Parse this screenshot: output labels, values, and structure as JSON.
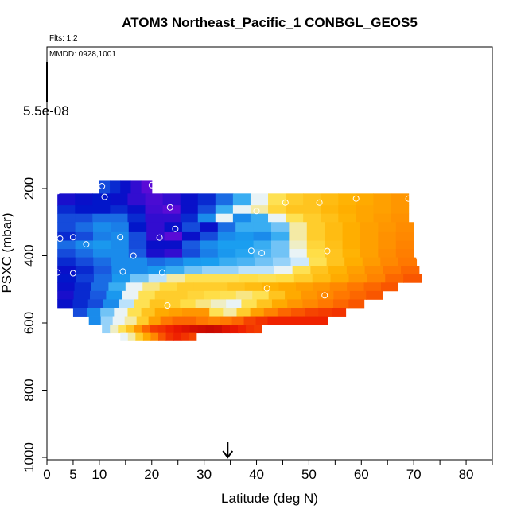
{
  "chart_data": {
    "type": "heatmap",
    "title": "ATOM3 Northeast_Pacific_1 CONBGL_GEOS5",
    "annotations": {
      "flights": "Flts: 1,2",
      "dates": "MMDD: 0928,1001"
    },
    "scale_label": "5.5e-08",
    "xlabel": "Latitude (deg N)",
    "ylabel": "PSXC (mbar)",
    "xlim": [
      0,
      85
    ],
    "ylim": [
      1000,
      0
    ],
    "x_ticks": [
      0,
      5,
      10,
      20,
      30,
      40,
      50,
      60,
      70,
      80
    ],
    "x_minor_ticks": [
      15,
      25,
      35,
      45,
      55,
      65,
      75,
      85
    ],
    "y_ticks": [
      200,
      400,
      600,
      800,
      1000
    ],
    "marker_latitude": 34.5,
    "color_scale": [
      "#5a0bd6",
      "#0010c8",
      "#1a5ae0",
      "#1aa0f0",
      "#e8f4ff",
      "#ffe04a",
      "#ffb000",
      "#ff7a00",
      "#ee1a00",
      "#b40000"
    ],
    "rows": [
      {
        "p_top": 175,
        "p_bot": 215,
        "lat_min": 10,
        "lat_max": 20,
        "values": [
          0.2,
          0.15,
          0.1,
          0.05,
          0.0
        ]
      },
      {
        "p_top": 215,
        "p_bot": 250,
        "lat_min": 2,
        "lat_max": 69,
        "values": [
          0.08,
          0.1,
          0.12,
          0.1,
          0.05,
          0.02,
          0.05,
          0.1,
          0.15,
          0.25,
          0.35,
          0.45,
          0.55,
          0.6,
          0.62,
          0.64,
          0.66,
          0.68,
          0.7,
          0.72
        ]
      },
      {
        "p_top": 250,
        "p_bot": 275,
        "lat_min": 2,
        "lat_max": 69,
        "values": [
          0.15,
          0.12,
          0.12,
          0.15,
          0.1,
          0.03,
          0.0,
          0.1,
          0.2,
          0.35,
          0.45,
          0.5,
          0.58,
          0.62,
          0.62,
          0.65,
          0.67,
          0.69,
          0.7,
          0.72
        ]
      },
      {
        "p_top": 275,
        "p_bot": 300,
        "lat_min": 2,
        "lat_max": 69,
        "values": [
          0.2,
          0.2,
          0.25,
          0.25,
          0.15,
          0.05,
          0.05,
          0.15,
          0.3,
          0.45,
          0.3,
          0.35,
          0.45,
          0.55,
          0.6,
          0.63,
          0.66,
          0.69,
          0.71,
          0.73
        ]
      },
      {
        "p_top": 300,
        "p_bot": 330,
        "lat_min": 2,
        "lat_max": 70,
        "values": [
          0.2,
          0.25,
          0.3,
          0.28,
          0.12,
          0.05,
          0.1,
          0.2,
          0.1,
          0.25,
          0.35,
          0.35,
          0.38,
          0.5,
          0.6,
          0.64,
          0.67,
          0.7,
          0.72,
          0.74
        ]
      },
      {
        "p_top": 330,
        "p_bot": 355,
        "lat_min": 2,
        "lat_max": 70,
        "values": [
          0.15,
          0.2,
          0.28,
          0.3,
          0.2,
          0.05,
          0.0,
          0.1,
          0.2,
          0.3,
          0.32,
          0.3,
          0.35,
          0.5,
          0.6,
          0.64,
          0.67,
          0.7,
          0.73,
          0.75
        ]
      },
      {
        "p_top": 355,
        "p_bot": 380,
        "lat_min": 2,
        "lat_max": 70,
        "values": [
          0.25,
          0.3,
          0.32,
          0.3,
          0.2,
          0.1,
          0.1,
          0.22,
          0.3,
          0.33,
          0.33,
          0.35,
          0.38,
          0.48,
          0.58,
          0.63,
          0.67,
          0.7,
          0.73,
          0.76
        ]
      },
      {
        "p_top": 380,
        "p_bot": 405,
        "lat_min": 2,
        "lat_max": 70,
        "values": [
          0.2,
          0.25,
          0.3,
          0.3,
          0.22,
          0.08,
          0.05,
          0.2,
          0.28,
          0.32,
          0.34,
          0.36,
          0.38,
          0.45,
          0.56,
          0.62,
          0.66,
          0.7,
          0.74,
          0.77
        ]
      },
      {
        "p_top": 405,
        "p_bot": 430,
        "lat_min": 2,
        "lat_max": 70.5,
        "values": [
          0.15,
          0.2,
          0.25,
          0.3,
          0.3,
          0.25,
          0.28,
          0.32,
          0.33,
          0.35,
          0.36,
          0.38,
          0.4,
          0.43,
          0.55,
          0.62,
          0.67,
          0.71,
          0.75,
          0.78
        ]
      },
      {
        "p_top": 430,
        "p_bot": 455,
        "lat_min": 2,
        "lat_max": 71,
        "values": [
          0.1,
          0.15,
          0.22,
          0.3,
          0.3,
          0.32,
          0.35,
          0.38,
          0.4,
          0.4,
          0.42,
          0.42,
          0.45,
          0.55,
          0.62,
          0.66,
          0.7,
          0.74,
          0.78,
          0.8
        ]
      },
      {
        "p_top": 455,
        "p_bot": 480,
        "lat_min": 2,
        "lat_max": 71.5,
        "values": [
          0.12,
          0.18,
          0.25,
          0.32,
          0.38,
          0.42,
          0.5,
          0.55,
          0.55,
          0.55,
          0.56,
          0.55,
          0.56,
          0.6,
          0.64,
          0.68,
          0.72,
          0.76,
          0.8,
          0.82
        ]
      },
      {
        "p_top": 480,
        "p_bot": 505,
        "lat_min": 2,
        "lat_max": 67,
        "values": [
          0.1,
          0.15,
          0.25,
          0.35,
          0.45,
          0.52,
          0.57,
          0.6,
          0.6,
          0.6,
          0.62,
          0.64,
          0.66,
          0.68,
          0.7,
          0.72,
          0.75,
          0.78,
          0.8,
          0.82
        ]
      },
      {
        "p_top": 505,
        "p_bot": 530,
        "lat_min": 2,
        "lat_max": 64,
        "values": [
          0.08,
          0.15,
          0.22,
          0.32,
          0.45,
          0.55,
          0.6,
          0.6,
          0.58,
          0.56,
          0.55,
          0.52,
          0.55,
          0.62,
          0.68,
          0.72,
          0.75,
          0.78,
          0.8,
          0.82
        ]
      },
      {
        "p_top": 530,
        "p_bot": 555,
        "lat_min": 2,
        "lat_max": 60.5,
        "values": [
          0.1,
          0.15,
          0.2,
          0.3,
          0.42,
          0.55,
          0.62,
          0.6,
          0.56,
          0.52,
          0.48,
          0.45,
          0.55,
          0.62,
          0.68,
          0.72,
          0.75,
          0.78,
          0.8,
          0.82
        ]
      },
      {
        "p_top": 555,
        "p_bot": 580,
        "lat_min": 5,
        "lat_max": 57,
        "values": [
          0.2,
          0.3,
          0.38,
          0.45,
          0.55,
          0.62,
          0.68,
          0.7,
          0.72,
          0.72,
          0.55,
          0.5,
          0.6,
          0.7,
          0.76,
          0.8,
          0.82,
          0.84,
          0.85,
          0.86
        ]
      },
      {
        "p_top": 580,
        "p_bot": 605,
        "lat_min": 8,
        "lat_max": 53.5,
        "values": [
          0.3,
          0.4,
          0.45,
          0.5,
          0.6,
          0.7,
          0.78,
          0.8,
          0.8,
          0.78,
          0.76,
          0.78,
          0.8,
          0.84,
          0.86,
          0.88,
          0.88,
          0.88,
          0.88,
          0.88
        ]
      },
      {
        "p_top": 605,
        "p_bot": 630,
        "lat_min": 10.5,
        "lat_max": 41,
        "values": [
          0.4,
          0.48,
          0.55,
          0.62,
          0.72,
          0.8,
          0.85,
          0.86,
          0.88,
          0.9,
          0.92,
          0.94,
          0.95,
          0.96,
          0.95,
          0.92,
          0.9,
          0.88,
          0.86,
          0.85
        ]
      },
      {
        "p_top": 630,
        "p_bot": 653,
        "lat_min": 14,
        "lat_max": 28.5,
        "values": [
          0.45,
          0.5,
          0.6,
          0.68,
          0.75,
          0.82,
          0.86,
          0.88,
          0.86,
          0.84
        ]
      }
    ],
    "points": [
      [
        2,
        208
      ],
      [
        10.5,
        193
      ],
      [
        11,
        225
      ],
      [
        20,
        190
      ],
      [
        23.5,
        256
      ],
      [
        24.5,
        320
      ],
      [
        21.5,
        346
      ],
      [
        14,
        345
      ],
      [
        5,
        345
      ],
      [
        2.5,
        349
      ],
      [
        7.5,
        366
      ],
      [
        16.5,
        400
      ],
      [
        2,
        450
      ],
      [
        5,
        452
      ],
      [
        14.5,
        447
      ],
      [
        22,
        450
      ],
      [
        40,
        267
      ],
      [
        45.5,
        242
      ],
      [
        52,
        242
      ],
      [
        59,
        230
      ],
      [
        69,
        230
      ],
      [
        39,
        385
      ],
      [
        41,
        392
      ],
      [
        53.5,
        386
      ],
      [
        71,
        405
      ],
      [
        42,
        497
      ],
      [
        53,
        518
      ],
      [
        23,
        548
      ]
    ]
  }
}
